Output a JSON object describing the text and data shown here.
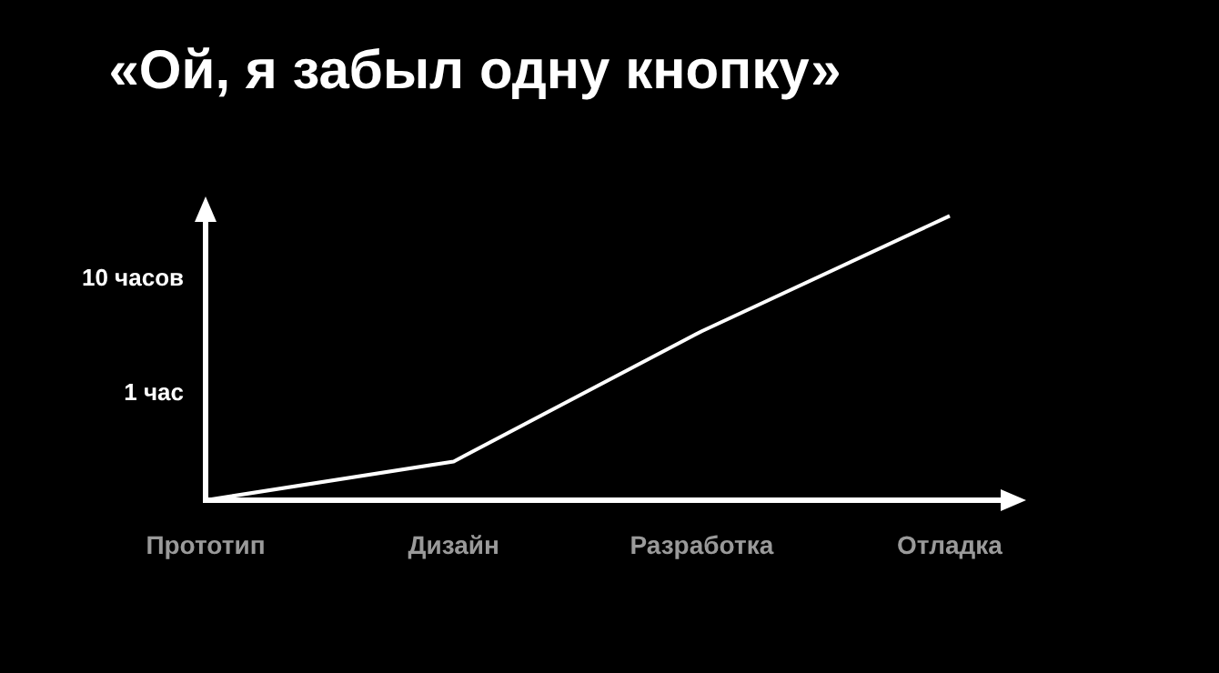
{
  "chart_data": {
    "type": "line",
    "title": "«Ой, я забыл одну кнопку»",
    "categories": [
      "Прототип",
      "Дизайн",
      "Разработка",
      "Отладка"
    ],
    "values": [
      0.12,
      0.26,
      3.5,
      35
    ],
    "color": "#ffffff",
    "ylim": [
      0.12,
      40
    ],
    "yticks": [
      {
        "value": 1,
        "label": "1 час"
      },
      {
        "value": 10,
        "label": "10 часов"
      }
    ],
    "log": true,
    "grid": false,
    "marker": "none"
  }
}
